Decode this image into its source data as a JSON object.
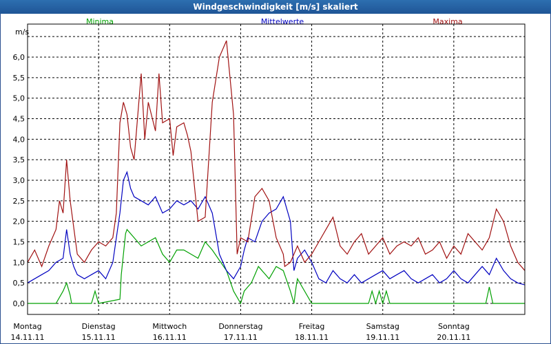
{
  "chart_data": {
    "type": "line",
    "title": "Windgeschwindigkeit [m/s] skaliert",
    "ylabel": "m/s",
    "ylim": [
      0,
      6.6
    ],
    "y_ticks": [
      "0,0",
      "0,5",
      "1,0",
      "1,5",
      "2,0",
      "2,5",
      "3,0",
      "3,5",
      "4,0",
      "4,5",
      "5,0",
      "5,5",
      "6,0"
    ],
    "x_range": [
      0,
      7
    ],
    "x_ticks": [
      {
        "day": "Montag",
        "date": "14.11.11"
      },
      {
        "day": "Dienstag",
        "date": "15.11.11"
      },
      {
        "day": "Mittwoch",
        "date": "16.11.11"
      },
      {
        "day": "Donnerstag",
        "date": "17.11.11"
      },
      {
        "day": "Freitag",
        "date": "18.11.11"
      },
      {
        "day": "Samstag",
        "date": "19.11.11"
      },
      {
        "day": "Sonntag",
        "date": "20.11.11"
      }
    ],
    "grid": true,
    "series": [
      {
        "name": "Minima",
        "color": "#00a000",
        "x": [
          0,
          0.4,
          0.5,
          0.55,
          0.6,
          0.62,
          0.9,
          0.95,
          1.0,
          1.3,
          1.32,
          1.35,
          1.38,
          1.4,
          1.5,
          1.6,
          1.7,
          1.8,
          1.9,
          2.0,
          2.1,
          2.2,
          2.3,
          2.4,
          2.5,
          2.6,
          2.8,
          2.9,
          3.0,
          3.05,
          3.1,
          3.15,
          3.2,
          3.25,
          3.3,
          3.4,
          3.5,
          3.6,
          3.7,
          3.75,
          3.78,
          3.8,
          4.0,
          4.8,
          4.85,
          4.9,
          4.95,
          5.0,
          5.05,
          5.1,
          5.2,
          6.45,
          6.5,
          6.55,
          7.0
        ],
        "y": [
          0,
          0,
          0.3,
          0.5,
          0.2,
          0,
          0,
          0.3,
          0,
          0.1,
          0.7,
          1.2,
          1.7,
          1.8,
          1.6,
          1.4,
          1.5,
          1.6,
          1.2,
          1.0,
          1.3,
          1.3,
          1.2,
          1.1,
          1.5,
          1.3,
          0.8,
          0.3,
          0,
          0.3,
          0.4,
          0.5,
          0.7,
          0.9,
          0.8,
          0.6,
          0.9,
          0.8,
          0.3,
          0,
          0.4,
          0.6,
          0,
          0,
          0.3,
          0,
          0.3,
          0,
          0.3,
          0,
          0,
          0,
          0.4,
          0,
          0
        ]
      },
      {
        "name": "Mittelwerte",
        "color": "#0000c0",
        "x": [
          0,
          0.1,
          0.2,
          0.3,
          0.4,
          0.5,
          0.55,
          0.6,
          0.65,
          0.7,
          0.8,
          0.9,
          1.0,
          1.1,
          1.2,
          1.3,
          1.35,
          1.4,
          1.45,
          1.5,
          1.6,
          1.7,
          1.8,
          1.9,
          2.0,
          2.1,
          2.2,
          2.3,
          2.4,
          2.5,
          2.6,
          2.7,
          2.8,
          2.9,
          3.0,
          3.05,
          3.1,
          3.2,
          3.3,
          3.4,
          3.5,
          3.6,
          3.7,
          3.75,
          3.8,
          3.9,
          4.0,
          4.1,
          4.2,
          4.3,
          4.4,
          4.5,
          4.6,
          4.7,
          4.8,
          4.9,
          5.0,
          5.1,
          5.2,
          5.3,
          5.4,
          5.5,
          5.6,
          5.7,
          5.8,
          5.9,
          6.0,
          6.1,
          6.2,
          6.3,
          6.4,
          6.5,
          6.6,
          6.7,
          6.8,
          6.9,
          7.0
        ],
        "y": [
          0.5,
          0.6,
          0.7,
          0.8,
          1.0,
          1.1,
          1.8,
          1.2,
          0.9,
          0.7,
          0.6,
          0.7,
          0.8,
          0.6,
          1.0,
          2.2,
          3.0,
          3.2,
          2.8,
          2.6,
          2.5,
          2.4,
          2.6,
          2.2,
          2.3,
          2.5,
          2.4,
          2.5,
          2.3,
          2.6,
          2.2,
          1.2,
          0.8,
          0.6,
          0.9,
          1.3,
          1.6,
          1.5,
          2.0,
          2.2,
          2.3,
          2.6,
          2.0,
          0.8,
          1.1,
          1.3,
          1.0,
          0.6,
          0.5,
          0.8,
          0.6,
          0.5,
          0.7,
          0.5,
          0.6,
          0.7,
          0.8,
          0.6,
          0.7,
          0.8,
          0.6,
          0.5,
          0.6,
          0.7,
          0.5,
          0.6,
          0.8,
          0.6,
          0.5,
          0.7,
          0.9,
          0.7,
          1.1,
          0.8,
          0.6,
          0.5,
          0.45
        ]
      },
      {
        "name": "Maxima",
        "color": "#a01010",
        "x": [
          0,
          0.1,
          0.2,
          0.3,
          0.4,
          0.45,
          0.5,
          0.55,
          0.6,
          0.7,
          0.8,
          0.9,
          1.0,
          1.1,
          1.2,
          1.25,
          1.3,
          1.35,
          1.4,
          1.45,
          1.5,
          1.6,
          1.65,
          1.7,
          1.8,
          1.85,
          1.9,
          2.0,
          2.05,
          2.1,
          2.2,
          2.25,
          2.3,
          2.4,
          2.5,
          2.6,
          2.7,
          2.8,
          2.9,
          2.95,
          3.0,
          3.1,
          3.2,
          3.3,
          3.4,
          3.5,
          3.6,
          3.62,
          3.7,
          3.75,
          3.8,
          3.9,
          4.0,
          4.1,
          4.2,
          4.3,
          4.4,
          4.5,
          4.6,
          4.7,
          4.8,
          4.9,
          5.0,
          5.1,
          5.2,
          5.3,
          5.4,
          5.5,
          5.6,
          5.7,
          5.8,
          5.9,
          6.0,
          6.1,
          6.2,
          6.3,
          6.4,
          6.5,
          6.6,
          6.7,
          6.8,
          6.9,
          7.0
        ],
        "y": [
          1.0,
          1.3,
          0.9,
          1.4,
          1.8,
          2.5,
          2.2,
          3.5,
          2.5,
          1.2,
          1.0,
          1.3,
          1.5,
          1.4,
          1.6,
          2.2,
          4.4,
          4.9,
          4.6,
          3.8,
          3.5,
          5.6,
          4.0,
          4.9,
          4.2,
          5.6,
          4.4,
          4.5,
          3.6,
          4.3,
          4.4,
          4.1,
          3.7,
          2.0,
          2.1,
          4.9,
          6.0,
          6.4,
          4.6,
          1.2,
          1.6,
          1.5,
          2.6,
          2.8,
          2.5,
          1.6,
          1.2,
          0.9,
          1.0,
          1.2,
          1.4,
          1.0,
          1.2,
          1.5,
          1.8,
          2.1,
          1.4,
          1.2,
          1.5,
          1.7,
          1.2,
          1.4,
          1.6,
          1.2,
          1.4,
          1.5,
          1.4,
          1.6,
          1.2,
          1.3,
          1.5,
          1.1,
          1.4,
          1.2,
          1.7,
          1.5,
          1.3,
          1.6,
          2.3,
          2.0,
          1.4,
          1.0,
          0.8
        ]
      }
    ]
  }
}
